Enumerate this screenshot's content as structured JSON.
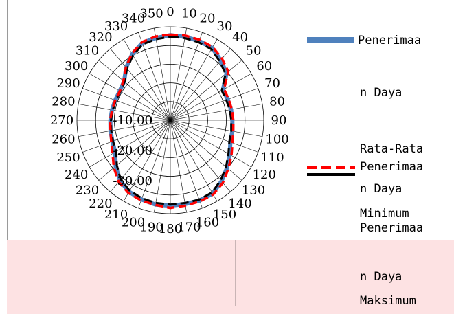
{
  "chart_data": {
    "type": "radar",
    "angle_labels": [
      "0",
      "10",
      "20",
      "30",
      "40",
      "50",
      "60",
      "70",
      "80",
      "90",
      "100",
      "110",
      "120",
      "130",
      "140",
      "150",
      "160",
      "170",
      "180",
      "190",
      "200",
      "210",
      "220",
      "230",
      "240",
      "250",
      "260",
      "270",
      "280",
      "290",
      "300",
      "310",
      "320",
      "330",
      "340",
      "350"
    ],
    "radial_ticks": [
      "-10.00",
      "-20.00",
      "-30.00"
    ],
    "r_range": [
      -50,
      0
    ],
    "grid": true,
    "legend_position": "right",
    "series": [
      {
        "name": "Penerimaan Daya",
        "color": "#4f81bd",
        "style": "solid-thick",
        "values": [
          -4.5,
          -4.7,
          -4.9,
          -5.3,
          -8.1,
          -10.7,
          -17.5,
          -17.3,
          -17.0,
          -16.8,
          -16.3,
          -15.8,
          -13.3,
          -10.4,
          -7.4,
          -4.7,
          -4.3,
          -4.5,
          -4.3,
          -4.2,
          -4.9,
          -5.8,
          -8.0,
          -11.8,
          -15.9,
          -17.0,
          -17.5,
          -17.9,
          -18.3,
          -18.6,
          -18.7,
          -17.7,
          -13.2,
          -9.2,
          -6.0,
          -5.3
        ]
      },
      {
        "name": "Rata-Rata Penerimaan Daya Minimum",
        "color": "#ff0000",
        "style": "dashed",
        "values": [
          -4.2,
          -4.0,
          -4.2,
          -4.7,
          -7.0,
          -9.5,
          -16.8,
          -16.8,
          -16.6,
          -16.3,
          -15.8,
          -14.6,
          -12.2,
          -9.5,
          -6.3,
          -4.1,
          -3.8,
          -3.6,
          -3.1,
          -4.0,
          -4.3,
          -5.1,
          -7.0,
          -10.5,
          -14.3,
          -16.3,
          -17.5,
          -17.8,
          -18.3,
          -18.6,
          -18.8,
          -17.2,
          -13.0,
          -8.8,
          -5.5,
          -4.5
        ]
      },
      {
        "name": "Penerimaan Daya Maksimum",
        "color": "#000000",
        "style": "dashed",
        "values": [
          -5.3,
          -5.4,
          -5.6,
          -6.1,
          -8.9,
          -11.4,
          -18.2,
          -18.2,
          -17.7,
          -17.4,
          -16.9,
          -16.4,
          -14.1,
          -11.1,
          -8.1,
          -5.4,
          -4.8,
          -5.0,
          -4.9,
          -5.1,
          -5.6,
          -6.5,
          -8.7,
          -12.6,
          -16.6,
          -17.3,
          -17.9,
          -18.2,
          -18.7,
          -18.9,
          -19.1,
          -18.0,
          -13.9,
          -10.0,
          -6.7,
          -6.0
        ]
      }
    ]
  },
  "legend": {
    "line1": "Penerimaa",
    "line2": "n Daya",
    "line3": "Rata-Rata",
    "line4": "Penerimaa",
    "line5": "n Daya",
    "line6": "Minimum",
    "line7": "Penerimaa",
    "line8": "n Daya",
    "line9": "Maksimum"
  }
}
